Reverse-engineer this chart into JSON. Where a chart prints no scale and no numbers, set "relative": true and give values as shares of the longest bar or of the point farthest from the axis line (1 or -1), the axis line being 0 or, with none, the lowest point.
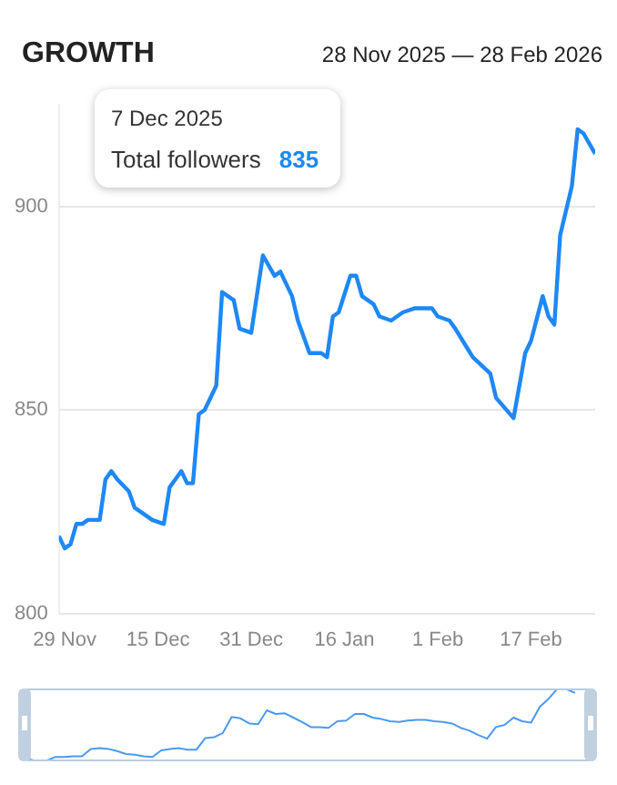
{
  "chart_data": [
    {
      "type": "line",
      "title": "GROWTH",
      "subtitle": "28 Nov 2025 — 28 Feb 2026",
      "annotations": [
        "7 Dec 2025",
        "Total followers",
        "835"
      ],
      "x": [
        "2025-11-28",
        "2025-11-29",
        "2025-11-30",
        "2025-12-01",
        "2025-12-02",
        "2025-12-03",
        "2025-12-05",
        "2025-12-06",
        "2025-12-07",
        "2025-12-08",
        "2025-12-10",
        "2025-12-11",
        "2025-12-12",
        "2025-12-14",
        "2025-12-16",
        "2025-12-17",
        "2025-12-18",
        "2025-12-19",
        "2025-12-20",
        "2025-12-21",
        "2025-12-22",
        "2025-12-23",
        "2025-12-25",
        "2025-12-26",
        "2025-12-28",
        "2025-12-29",
        "2025-12-31",
        "2026-01-02",
        "2026-01-04",
        "2026-01-05",
        "2026-01-07",
        "2026-01-08",
        "2026-01-10",
        "2026-01-12",
        "2026-01-13",
        "2026-01-14",
        "2026-01-15",
        "2026-01-17",
        "2026-01-18",
        "2026-01-19",
        "2026-01-21",
        "2026-01-22",
        "2026-01-24",
        "2026-01-26",
        "2026-01-28",
        "2026-01-31",
        "2026-02-01",
        "2026-02-03",
        "2026-02-04",
        "2026-02-07",
        "2026-02-10",
        "2026-02-11",
        "2026-02-14",
        "2026-02-16",
        "2026-02-17",
        "2026-02-19",
        "2026-02-20",
        "2026-02-21",
        "2026-02-22",
        "2026-02-24",
        "2026-02-25",
        "2026-02-26",
        "2026-02-28"
      ],
      "series": [
        {
          "color": "#1e88f5",
          "values": [
            819,
            816,
            817,
            822,
            822,
            823,
            823,
            833,
            835,
            833,
            830,
            826,
            825,
            823,
            822,
            831,
            833,
            835,
            832,
            832,
            849,
            850,
            856,
            879,
            877,
            870,
            869,
            888,
            883,
            884,
            878,
            872,
            864,
            864,
            863,
            873,
            874,
            883,
            883,
            878,
            876,
            873,
            872,
            874,
            875,
            875,
            873,
            872,
            870,
            863,
            859,
            853,
            848,
            864,
            867,
            878,
            873,
            871,
            893,
            905,
            919,
            918,
            913
          ]
        }
      ],
      "xlim": [
        "2025-11-28",
        "2026-02-28"
      ],
      "xticks": [
        {
          "value": "2025-11-29",
          "label": "29 Nov"
        },
        {
          "value": "2025-12-15",
          "label": "15 Dec"
        },
        {
          "value": "2025-12-31",
          "label": "31 Dec"
        },
        {
          "value": "2026-01-16",
          "label": "16 Jan"
        },
        {
          "value": "2026-02-01",
          "label": "1 Feb"
        },
        {
          "value": "2026-02-17",
          "label": "17 Feb"
        }
      ],
      "ylim": [
        800,
        925
      ],
      "yticks": [
        800,
        850,
        900
      ],
      "grid": "y",
      "legend": false,
      "marker": "none"
    },
    {
      "type": "line",
      "relative": true,
      "categories": [
        null,
        null,
        null,
        null,
        null,
        null,
        null,
        null,
        null,
        null,
        null,
        null,
        null,
        null,
        null,
        null,
        null,
        null,
        null,
        null,
        null,
        null,
        null,
        null,
        null,
        null,
        null,
        null,
        null,
        null,
        null,
        null,
        null,
        null,
        null,
        null,
        null,
        null,
        null,
        null,
        null,
        null,
        null,
        null,
        null,
        null,
        null,
        null,
        null,
        null,
        null,
        null,
        null,
        null,
        null,
        null,
        null,
        null,
        null,
        null,
        null,
        null,
        null
      ],
      "series": [
        {
          "color": "#4a9af0",
          "values": [
            0.03,
            0,
            0.01,
            0.06,
            0.06,
            0.07,
            0.07,
            0.17,
            0.18,
            0.17,
            0.14,
            0.1,
            0.09,
            0.07,
            0.06,
            0.15,
            0.17,
            0.18,
            0.16,
            0.16,
            0.32,
            0.33,
            0.39,
            0.61,
            0.59,
            0.52,
            0.51,
            0.7,
            0.65,
            0.66,
            0.6,
            0.54,
            0.47,
            0.47,
            0.46,
            0.55,
            0.56,
            0.65,
            0.65,
            0.6,
            0.58,
            0.55,
            0.54,
            0.56,
            0.57,
            0.57,
            0.55,
            0.54,
            0.52,
            0.46,
            0.42,
            0.36,
            0.31,
            0.47,
            0.5,
            0.6,
            0.55,
            0.53,
            0.75,
            0.86,
            1,
            0.99,
            0.94
          ]
        }
      ],
      "tick_labels": false,
      "grid": false,
      "legend": false,
      "marker": "none"
    }
  ]
}
